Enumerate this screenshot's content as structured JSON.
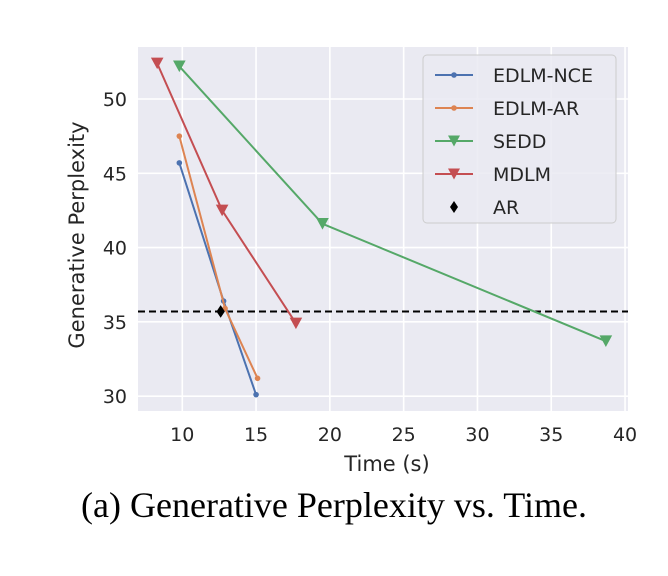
{
  "caption": "(a) Generative Perplexity vs. Time.",
  "chart_data": {
    "type": "line",
    "title": "",
    "xlabel": "Time (s)",
    "ylabel": "Generative Perplexity",
    "xlim": [
      7,
      40.2
    ],
    "ylim": [
      29,
      53.5
    ],
    "xticks": [
      10,
      15,
      20,
      25,
      30,
      35,
      40
    ],
    "yticks": [
      30,
      35,
      40,
      45,
      50
    ],
    "grid": true,
    "legend_position": "top-right",
    "reference_line": {
      "y": 35.7,
      "style": "dashed",
      "color": "#000000"
    },
    "series": [
      {
        "name": "EDLM-NCE",
        "color": "#4c72b0",
        "marker": "dot",
        "x": [
          9.8,
          12.8,
          15.0
        ],
        "y": [
          45.7,
          36.4,
          30.1
        ]
      },
      {
        "name": "EDLM-AR",
        "color": "#dd8452",
        "marker": "dot",
        "x": [
          9.8,
          12.9,
          15.1
        ],
        "y": [
          47.5,
          35.9,
          31.2
        ]
      },
      {
        "name": "SEDD",
        "color": "#55a868",
        "marker": "triangle-down",
        "x": [
          9.8,
          19.5,
          38.7
        ],
        "y": [
          52.2,
          41.6,
          33.7
        ]
      },
      {
        "name": "MDLM",
        "color": "#c44e52",
        "marker": "triangle-down",
        "x": [
          8.3,
          12.7,
          17.7
        ],
        "y": [
          52.4,
          42.5,
          34.9
        ]
      },
      {
        "name": "AR",
        "color": "#000000",
        "marker": "diamond",
        "x": [
          12.6
        ],
        "y": [
          35.7
        ]
      }
    ]
  }
}
